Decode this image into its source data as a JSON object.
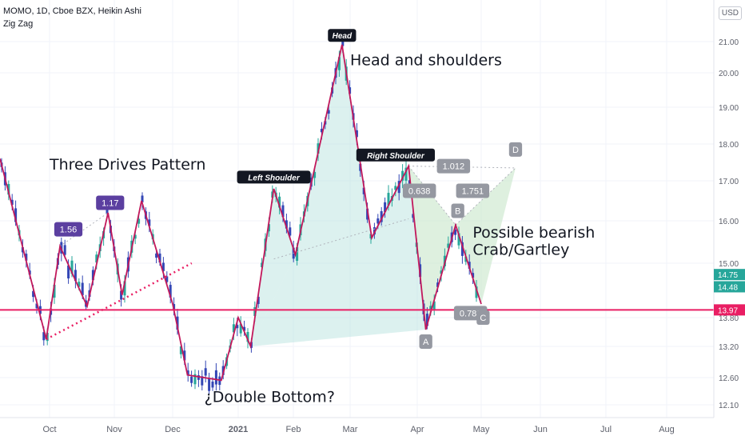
{
  "header": {
    "symbol_line": "MOMO, 1D, Cboe BZX, Heikin Ashi",
    "indicator": "Zig Zag",
    "currency": "USD"
  },
  "colors": {
    "up": "#26a69a",
    "down": "#3346b5",
    "zigzag": "#c2185b",
    "pattern_label": "#5b3fa0",
    "fib_label": "#9598a1",
    "support_line": "#e91e63",
    "shoulder_fill": "#b2dfdb",
    "crab_fill": "#c8e6c9"
  },
  "chart_data": {
    "type": "candlestick",
    "y_ticks": [
      "21.00",
      "20.00",
      "19.00",
      "18.00",
      "17.00",
      "16.00",
      "15.00",
      "13.80",
      "13.20",
      "12.60",
      "12.10"
    ],
    "x_ticks": [
      "Oct",
      "Nov",
      "Dec",
      "2021",
      "Feb",
      "Mar",
      "Apr",
      "May",
      "Jun",
      "Jul",
      "Aug"
    ],
    "price_labels": [
      {
        "text": "14.75",
        "value": 14.75,
        "color": "#26a69a"
      },
      {
        "text": "14.48",
        "value": 14.48,
        "color": "#26a69a"
      },
      {
        "text": "13.97",
        "value": 13.97,
        "color": "#e91e63"
      }
    ],
    "zigzag": [
      {
        "date": "2020-09-01",
        "price": 17.6
      },
      {
        "date": "2020-09-29",
        "price": 13.35
      },
      {
        "date": "2020-10-06",
        "price": 15.4
      },
      {
        "date": "2020-10-19",
        "price": 14.05
      },
      {
        "date": "2020-10-29",
        "price": 16.2
      },
      {
        "date": "2020-11-05",
        "price": 14.3
      },
      {
        "date": "2020-11-15",
        "price": 16.5
      },
      {
        "date": "2020-12-01",
        "price": 14.1
      },
      {
        "date": "2020-12-08",
        "price": 12.65
      },
      {
        "date": "2020-12-24",
        "price": 12.55
      },
      {
        "date": "2021-01-01",
        "price": 13.8
      },
      {
        "date": "2021-01-08",
        "price": 13.2
      },
      {
        "date": "2021-01-21",
        "price": 16.8
      },
      {
        "date": "2021-02-02",
        "price": 15.2
      },
      {
        "date": "2021-02-25",
        "price": 20.9
      },
      {
        "date": "2021-03-11",
        "price": 15.6
      },
      {
        "date": "2021-03-28",
        "price": 17.4
      },
      {
        "date": "2021-04-05",
        "price": 13.55
      },
      {
        "date": "2021-04-19",
        "price": 15.9
      },
      {
        "date": "2021-05-01",
        "price": 14.1
      }
    ],
    "support_price": 13.97,
    "annotations": [
      {
        "text": "Three Drives Pattern",
        "date": "2020-10-01",
        "price": 17.3
      },
      {
        "text": "Head and shoulders",
        "date": "2021-02-29",
        "price": 20.25
      },
      {
        "text": "¿Double Bottom?",
        "date": "2020-12-16",
        "price": 12.15
      },
      {
        "text": "Possible bearish",
        "date": "2021-04-27",
        "price": 15.6
      },
      {
        "text": "Crab/Gartley",
        "date": "2021-04-27",
        "price": 15.2
      }
    ],
    "tags": [
      {
        "text": "Head",
        "date": "2021-02-25",
        "price": 21.2,
        "style": "black"
      },
      {
        "text": "Left Shoulder",
        "date": "2021-01-21",
        "price": 17.1,
        "style": "black"
      },
      {
        "text": "Right Shoulder",
        "date": "2021-03-22",
        "price": 17.7,
        "style": "black"
      },
      {
        "text": "1.56",
        "date": "2020-10-10",
        "price": 15.8,
        "style": "purple"
      },
      {
        "text": "1.17",
        "date": "2020-10-30",
        "price": 16.45,
        "style": "purple"
      },
      {
        "text": "1.012",
        "date": "2021-04-18",
        "price": 17.4,
        "style": "gray"
      },
      {
        "text": "0.638",
        "date": "2021-04-02",
        "price": 16.75,
        "style": "gray"
      },
      {
        "text": "1.751",
        "date": "2021-04-27",
        "price": 16.75,
        "style": "gray"
      },
      {
        "text": "B",
        "date": "2021-04-20",
        "price": 16.25,
        "style": "gray"
      },
      {
        "text": "D",
        "date": "2021-05-19",
        "price": 17.85,
        "style": "gray"
      },
      {
        "text": "0.783",
        "date": "2021-04-26",
        "price": 13.9,
        "style": "gray"
      },
      {
        "text": "A",
        "date": "2021-04-05",
        "price": 13.3,
        "style": "gray"
      },
      {
        "text": "C",
        "date": "2021-05-02",
        "price": 13.8,
        "style": "gray"
      }
    ]
  }
}
